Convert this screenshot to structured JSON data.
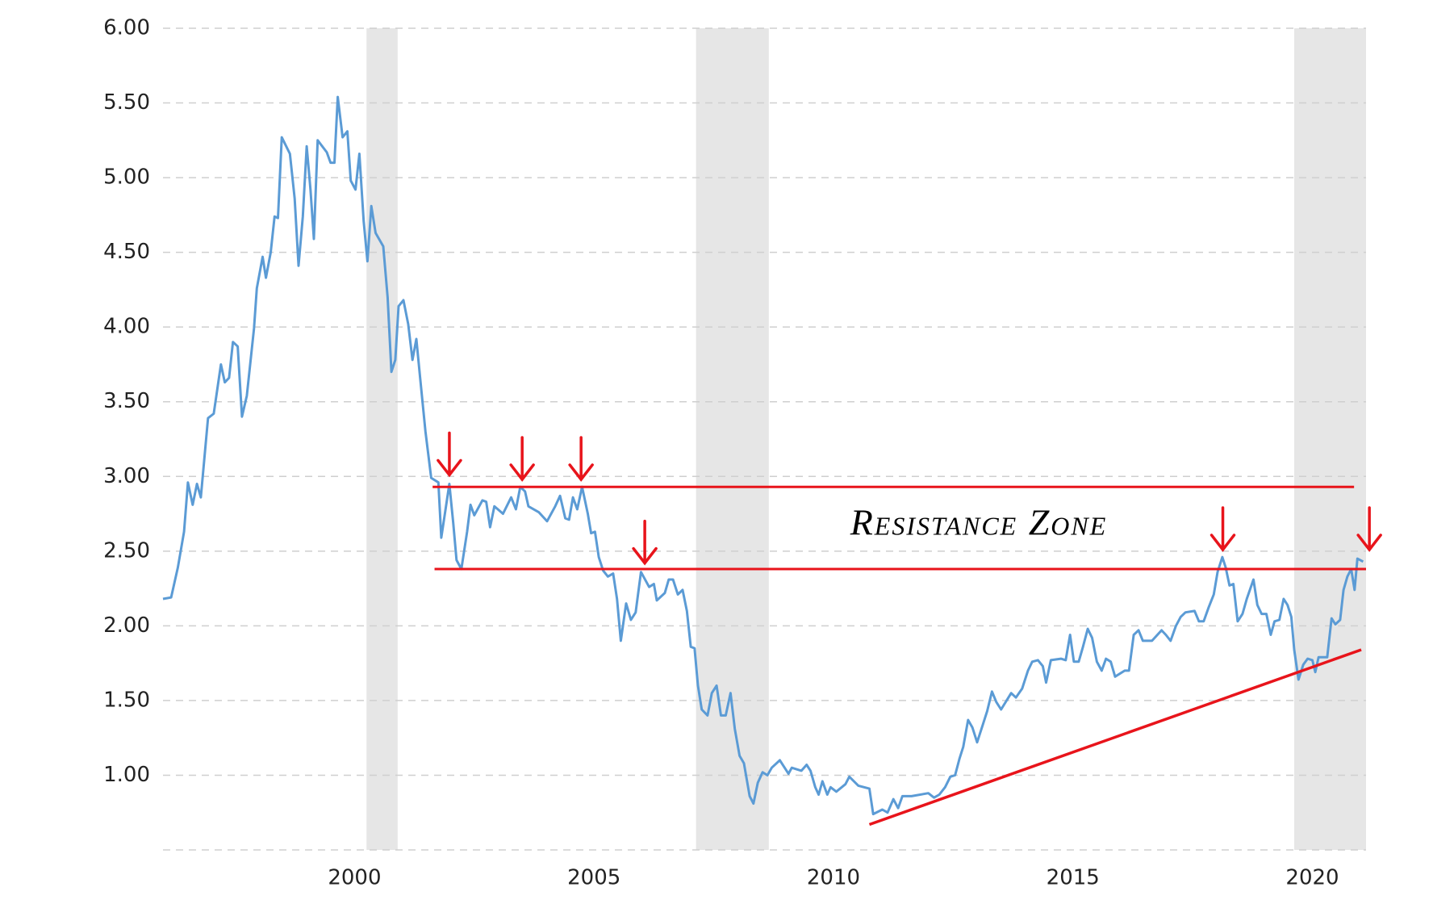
{
  "chart_data": {
    "type": "line",
    "color": "#5b9bd5",
    "xlim": [
      1996,
      2021.12
    ],
    "xticks": [
      2000,
      2005,
      2010,
      2015,
      2020
    ],
    "ylim": [
      0.5,
      6
    ],
    "yticks": [
      {
        "value": 1,
        "label": "1.00"
      },
      {
        "value": 1.5,
        "label": "1.50"
      },
      {
        "value": 2,
        "label": "2.00"
      },
      {
        "value": 2.5,
        "label": "2.50"
      },
      {
        "value": 3,
        "label": "3.00"
      },
      {
        "value": 3.5,
        "label": "3.50"
      },
      {
        "value": 4,
        "label": "4.00"
      },
      {
        "value": 4.5,
        "label": "4.50"
      },
      {
        "value": 5,
        "label": "5.00"
      },
      {
        "value": 5.5,
        "label": "5.50"
      },
      {
        "value": 6,
        "label": "6.00"
      }
    ],
    "grid": true,
    "shaded_ranges": [
      [
        2000.25,
        2000.9
      ],
      [
        2007.13,
        2008.65
      ],
      [
        2019.62,
        2021.12
      ]
    ],
    "x": [
      1996.0,
      1996.17,
      1996.31,
      1996.44,
      1996.52,
      1996.62,
      1996.71,
      1996.79,
      1996.94,
      1997.06,
      1997.21,
      1997.29,
      1997.38,
      1997.46,
      1997.56,
      1997.65,
      1997.75,
      1997.9,
      1997.96,
      1998.08,
      1998.15,
      1998.25,
      1998.33,
      1998.4,
      1998.48,
      1998.65,
      1998.75,
      1998.83,
      1998.92,
      1999.0,
      1999.08,
      1999.15,
      1999.23,
      1999.42,
      1999.5,
      1999.58,
      1999.65,
      1999.75,
      1999.85,
      1999.92,
      2000.02,
      2000.1,
      2000.19,
      2000.27,
      2000.35,
      2000.44,
      2000.6,
      2000.69,
      2000.77,
      2000.85,
      2000.92,
      2001.02,
      2001.12,
      2001.21,
      2001.29,
      2001.37,
      2001.48,
      2001.6,
      2001.75,
      2001.81,
      2001.9,
      2001.98,
      2002.06,
      2002.13,
      2002.23,
      2002.35,
      2002.42,
      2002.5,
      2002.67,
      2002.75,
      2002.83,
      2002.92,
      2003.1,
      2003.27,
      2003.37,
      2003.46,
      2003.56,
      2003.63,
      2003.85,
      2004.02,
      2004.19,
      2004.29,
      2004.4,
      2004.48,
      2004.56,
      2004.65,
      2004.75,
      2004.87,
      2004.94,
      2005.02,
      2005.1,
      2005.19,
      2005.29,
      2005.4,
      2005.48,
      2005.56,
      2005.67,
      2005.77,
      2005.87,
      2005.98,
      2006.15,
      2006.25,
      2006.31,
      2006.48,
      2006.56,
      2006.65,
      2006.75,
      2006.85,
      2006.94,
      2007.02,
      2007.1,
      2007.17,
      2007.25,
      2007.37,
      2007.46,
      2007.56,
      2007.65,
      2007.75,
      2007.85,
      2007.94,
      2008.04,
      2008.13,
      2008.25,
      2008.33,
      2008.42,
      2008.52,
      2008.62,
      2008.71,
      2008.88,
      2009.06,
      2009.13,
      2009.33,
      2009.44,
      2009.52,
      2009.62,
      2009.69,
      2009.77,
      2009.87,
      2009.94,
      2010.06,
      2010.25,
      2010.33,
      2010.52,
      2010.75,
      2010.83,
      2011.02,
      2011.13,
      2011.25,
      2011.35,
      2011.44,
      2011.63,
      2011.98,
      2012.1,
      2012.21,
      2012.33,
      2012.44,
      2012.54,
      2012.63,
      2012.71,
      2012.81,
      2012.9,
      2013.0,
      2013.1,
      2013.21,
      2013.31,
      2013.4,
      2013.5,
      2013.71,
      2013.81,
      2013.94,
      2014.06,
      2014.15,
      2014.27,
      2014.37,
      2014.44,
      2014.54,
      2014.75,
      2014.85,
      2014.94,
      2015.02,
      2015.12,
      2015.21,
      2015.31,
      2015.4,
      2015.5,
      2015.6,
      2015.69,
      2015.79,
      2015.88,
      2016.08,
      2016.17,
      2016.27,
      2016.37,
      2016.46,
      2016.65,
      2016.85,
      2016.94,
      2017.04,
      2017.15,
      2017.25,
      2017.35,
      2017.54,
      2017.63,
      2017.73,
      2017.83,
      2017.94,
      2018.02,
      2018.12,
      2018.19,
      2018.27,
      2018.35,
      2018.44,
      2018.54,
      2018.63,
      2018.77,
      2018.85,
      2018.94,
      2019.04,
      2019.13,
      2019.21,
      2019.31,
      2019.4,
      2019.48,
      2019.56,
      2019.62,
      2019.71,
      2019.81,
      2019.9,
      2020.0,
      2020.06,
      2020.13,
      2020.31,
      2020.4,
      2020.48,
      2020.58,
      2020.65,
      2020.73,
      2020.81,
      2020.88,
      2020.94,
      2021.06
    ],
    "values": [
      2.18,
      2.19,
      2.39,
      2.63,
      2.96,
      2.81,
      2.95,
      2.86,
      3.39,
      3.42,
      3.75,
      3.63,
      3.66,
      3.9,
      3.87,
      3.4,
      3.54,
      3.99,
      4.26,
      4.47,
      4.33,
      4.5,
      4.74,
      4.73,
      5.27,
      5.16,
      4.86,
      4.41,
      4.74,
      5.21,
      4.92,
      4.59,
      5.25,
      5.17,
      5.1,
      5.1,
      5.54,
      5.27,
      5.31,
      4.98,
      4.92,
      5.16,
      4.71,
      4.44,
      4.81,
      4.63,
      4.54,
      4.2,
      3.7,
      3.78,
      4.14,
      4.18,
      4.02,
      3.78,
      3.92,
      3.66,
      3.3,
      2.99,
      2.96,
      2.59,
      2.78,
      2.95,
      2.69,
      2.44,
      2.38,
      2.63,
      2.81,
      2.74,
      2.84,
      2.83,
      2.66,
      2.8,
      2.75,
      2.86,
      2.78,
      2.93,
      2.9,
      2.8,
      2.76,
      2.7,
      2.8,
      2.87,
      2.72,
      2.71,
      2.86,
      2.78,
      2.93,
      2.75,
      2.62,
      2.63,
      2.46,
      2.37,
      2.33,
      2.35,
      2.18,
      1.9,
      2.15,
      2.04,
      2.09,
      2.36,
      2.26,
      2.28,
      2.17,
      2.22,
      2.31,
      2.31,
      2.21,
      2.24,
      2.1,
      1.86,
      1.85,
      1.6,
      1.44,
      1.4,
      1.55,
      1.6,
      1.4,
      1.4,
      1.55,
      1.31,
      1.13,
      1.08,
      0.86,
      0.81,
      0.95,
      1.02,
      1.0,
      1.05,
      1.1,
      1.01,
      1.05,
      1.03,
      1.07,
      1.03,
      0.92,
      0.87,
      0.96,
      0.87,
      0.92,
      0.89,
      0.94,
      0.99,
      0.93,
      0.91,
      0.74,
      0.77,
      0.75,
      0.84,
      0.78,
      0.86,
      0.86,
      0.88,
      0.85,
      0.87,
      0.92,
      0.99,
      1.0,
      1.11,
      1.19,
      1.37,
      1.32,
      1.22,
      1.32,
      1.43,
      1.56,
      1.49,
      1.44,
      1.55,
      1.52,
      1.58,
      1.7,
      1.76,
      1.77,
      1.73,
      1.62,
      1.77,
      1.78,
      1.77,
      1.94,
      1.76,
      1.76,
      1.86,
      1.98,
      1.92,
      1.76,
      1.7,
      1.78,
      1.76,
      1.66,
      1.7,
      1.7,
      1.94,
      1.97,
      1.9,
      1.9,
      1.97,
      1.94,
      1.9,
      2.0,
      2.06,
      2.09,
      2.1,
      2.03,
      2.03,
      2.12,
      2.21,
      2.36,
      2.46,
      2.39,
      2.27,
      2.28,
      2.03,
      2.08,
      2.18,
      2.31,
      2.14,
      2.08,
      2.08,
      1.94,
      2.03,
      2.04,
      2.18,
      2.14,
      2.06,
      1.84,
      1.64,
      1.74,
      1.78,
      1.77,
      1.69,
      1.79,
      1.79,
      2.05,
      2.01,
      2.04,
      2.24,
      2.33,
      2.38,
      2.24,
      2.45,
      2.43
    ],
    "annotation_color": "#e8141b",
    "reference_lines": [
      {
        "x": [
          2001.63,
          2020.87
        ],
        "y": 2.93
      },
      {
        "x": [
          2001.67,
          2021.12
        ],
        "y": 2.38
      }
    ],
    "trend_line": {
      "x": [
        2010.75,
        2021.02
      ],
      "y": [
        0.67,
        1.84
      ]
    },
    "arrows": {
      "x": [
        2001.98,
        2003.5,
        2004.73,
        2006.06,
        2018.13,
        2021.19
      ],
      "y": [
        3.01,
        2.98,
        2.98,
        2.42,
        2.51,
        2.51
      ]
    },
    "annotation": "Resistance Zone"
  }
}
